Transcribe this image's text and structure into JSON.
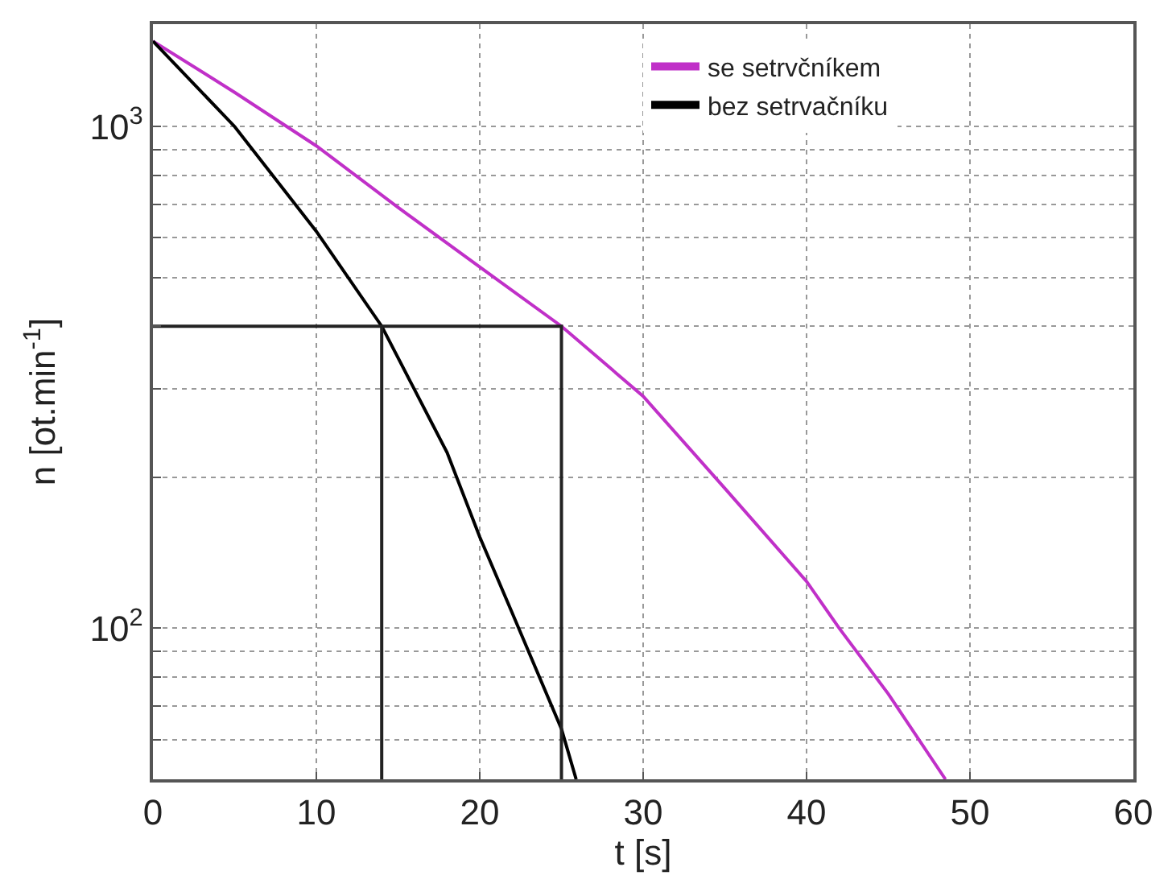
{
  "chart_data": {
    "type": "line",
    "xlabel": "t [s]",
    "ylabel": "n [ot.min$^{-1}$]",
    "log": "y",
    "xlim": [
      0,
      60
    ],
    "xticks": [
      0,
      10,
      20,
      30,
      40,
      50,
      60
    ],
    "ylim": [
      50,
      1600
    ],
    "yticks": [
      {
        "value": 50,
        "label": null
      },
      {
        "value": 60,
        "label": null
      },
      {
        "value": 70,
        "label": null
      },
      {
        "value": 80,
        "label": null
      },
      {
        "value": 90,
        "label": null
      },
      {
        "value": 100,
        "label": "10$^{2}$"
      },
      {
        "value": 200,
        "label": null
      },
      {
        "value": 300,
        "label": null
      },
      {
        "value": 400,
        "label": null
      },
      {
        "value": 500,
        "label": null
      },
      {
        "value": 600,
        "label": null
      },
      {
        "value": 700,
        "label": null
      },
      {
        "value": 800,
        "label": null
      },
      {
        "value": 900,
        "label": null
      },
      {
        "value": 1000,
        "label": "10$^{3}$"
      }
    ],
    "grid": true,
    "legend": "top",
    "marker": "none",
    "line_style": "solid",
    "series": [
      {
        "name": "se setrvčníkem",
        "color": "#c030c8",
        "x": [
          0,
          5,
          10,
          15,
          20,
          25,
          30,
          35,
          40,
          42,
          45,
          48.5
        ],
        "values": [
          1480,
          1170,
          915,
          690,
          525,
          400,
          290,
          190,
          124,
          100,
          74,
          50
        ]
      },
      {
        "name": "bez setrvačníku",
        "color": "#000000",
        "x": [
          0,
          5,
          10,
          14,
          18,
          20,
          22,
          25,
          25.9
        ],
        "values": [
          1480,
          1000,
          618,
          400,
          224,
          152,
          107,
          63,
          50
        ]
      },
      {
        "color": "#222222",
        "x": [
          0,
          25,
          25
        ],
        "values": [
          400,
          400,
          50
        ]
      },
      {
        "color": "#222222",
        "x": [
          14,
          14
        ],
        "values": [
          400,
          50
        ]
      }
    ]
  }
}
